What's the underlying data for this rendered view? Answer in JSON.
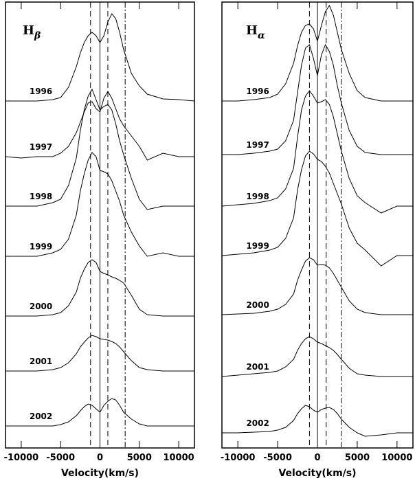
{
  "chart_data": [
    {
      "type": "line",
      "label": "H",
      "label_sub": "β",
      "xlabel": "Velocity(km/s)",
      "xlim": [
        -12000,
        12000
      ],
      "xticks": [
        -10000,
        -5000,
        0,
        5000,
        10000
      ],
      "ylim": [
        0,
        649
      ],
      "reference_lines": [
        {
          "value": -1200,
          "style": "dashed"
        },
        {
          "value": 0,
          "style": "solid"
        },
        {
          "value": 1000,
          "style": "dashed"
        },
        {
          "value": 3200,
          "style": "dashdot"
        }
      ],
      "x": [
        -12000,
        -10000,
        -8000,
        -6000,
        -5000,
        -4000,
        -3000,
        -2500,
        -2000,
        -1500,
        -1000,
        -500,
        0,
        500,
        1000,
        1500,
        2000,
        2500,
        3000,
        4000,
        5000,
        6000,
        8000,
        10000,
        12000
      ],
      "series": [
        {
          "name": "1996",
          "color": "#000000",
          "values": [
            505,
            505,
            505,
            507,
            510,
            525,
            555,
            575,
            590,
            600,
            605,
            600,
            590,
            600,
            620,
            632,
            625,
            605,
            580,
            545,
            527,
            515,
            508,
            507,
            505
          ]
        },
        {
          "name": "1997",
          "color": "#000000",
          "values": [
            424,
            422,
            424,
            424,
            429,
            439,
            459,
            474,
            489,
            502,
            504,
            494,
            489,
            509,
            519,
            509,
            494,
            479,
            469,
            454,
            439,
            419,
            429,
            424,
            424
          ]
        },
        {
          "name": "1998",
          "color": "#000000",
          "values": [
            352,
            352,
            352,
            357,
            362,
            382,
            422,
            462,
            492,
            512,
            522,
            507,
            492,
            497,
            500,
            492,
            472,
            447,
            427,
            392,
            362,
            347,
            352,
            352,
            352
          ]
        },
        {
          "name": "1999",
          "color": "#000000",
          "values": [
            279,
            279,
            279,
            284,
            289,
            304,
            339,
            374,
            399,
            419,
            430,
            424,
            404,
            402,
            399,
            389,
            374,
            359,
            339,
            314,
            294,
            279,
            284,
            279,
            279
          ]
        },
        {
          "name": "2000",
          "color": "#000000",
          "values": [
            192,
            192,
            192,
            194,
            197,
            207,
            227,
            247,
            260,
            270,
            274,
            270,
            257,
            254,
            252,
            249,
            247,
            244,
            240,
            222,
            202,
            194,
            192,
            192,
            192
          ]
        },
        {
          "name": "2001",
          "color": "#000000",
          "values": [
            112,
            112,
            112,
            114,
            117,
            124,
            137,
            147,
            154,
            160,
            164,
            162,
            159,
            158,
            157,
            155,
            152,
            147,
            140,
            127,
            117,
            114,
            112,
            112,
            112
          ]
        },
        {
          "name": "2002",
          "color": "#000000",
          "values": [
            32,
            32,
            32,
            32,
            34,
            38,
            47,
            54,
            60,
            64,
            62,
            57,
            52,
            62,
            68,
            72,
            70,
            62,
            52,
            42,
            35,
            32,
            32,
            32,
            32
          ]
        }
      ]
    },
    {
      "type": "line",
      "label": "H",
      "label_sub": "α",
      "xlabel": "Velocity(km/s)",
      "xlim": [
        -12000,
        12000
      ],
      "xticks": [
        -10000,
        -5000,
        0,
        5000,
        10000
      ],
      "ylim": [
        0,
        649
      ],
      "reference_lines": [
        {
          "value": -1000,
          "style": "dashed"
        },
        {
          "value": 0,
          "style": "solid"
        },
        {
          "value": 1100,
          "style": "dashed"
        },
        {
          "value": 3000,
          "style": "dashdot"
        }
      ],
      "x": [
        -12000,
        -10000,
        -8000,
        -6000,
        -5000,
        -4000,
        -3000,
        -2500,
        -2000,
        -1500,
        -1000,
        -500,
        0,
        500,
        1000,
        1500,
        2000,
        2500,
        3000,
        4000,
        5000,
        6000,
        8000,
        10000,
        12000
      ],
      "series": [
        {
          "name": "1996",
          "color": "#000000",
          "values": [
            505,
            505,
            507,
            510,
            515,
            530,
            560,
            585,
            605,
            615,
            617,
            610,
            592,
            615,
            635,
            644,
            630,
            605,
            580,
            545,
            520,
            510,
            505,
            505,
            505
          ]
        },
        {
          "name": "1997",
          "color": "#000000",
          "values": [
            427,
            427,
            429,
            432,
            435,
            447,
            477,
            517,
            557,
            582,
            587,
            567,
            542,
            572,
            587,
            577,
            557,
            527,
            502,
            462,
            439,
            430,
            427,
            427,
            427
          ]
        },
        {
          "name": "1998",
          "color": "#000000",
          "values": [
            352,
            354,
            356,
            360,
            364,
            377,
            407,
            452,
            492,
            512,
            520,
            512,
            502,
            504,
            507,
            500,
            482,
            457,
            432,
            392,
            367,
            357,
            342,
            352,
            352
          ]
        },
        {
          "name": "1999",
          "color": "#000000",
          "values": [
            280,
            282,
            284,
            288,
            292,
            305,
            335,
            375,
            405,
            425,
            432,
            428,
            420,
            417,
            410,
            400,
            385,
            370,
            355,
            320,
            298,
            288,
            265,
            280,
            280
          ]
        },
        {
          "name": "2000",
          "color": "#000000",
          "values": [
            194,
            195,
            196,
            199,
            202,
            209,
            224,
            244,
            259,
            272,
            277,
            274,
            266,
            267,
            266,
            262,
            254,
            244,
            234,
            214,
            202,
            197,
            194,
            194,
            194
          ]
        },
        {
          "name": "2001",
          "color": "#000000",
          "values": [
            104,
            106,
            108,
            110,
            112,
            118,
            129,
            142,
            152,
            159,
            162,
            159,
            154,
            152,
            149,
            146,
            142,
            136,
            129,
            116,
            108,
            106,
            104,
            104,
            104
          ]
        },
        {
          "name": "2002",
          "color": "#000000",
          "values": [
            22,
            22,
            23,
            24,
            26,
            30,
            40,
            50,
            57,
            62,
            60,
            55,
            52,
            56,
            58,
            59,
            56,
            50,
            42,
            30,
            22,
            17,
            19,
            22,
            22
          ]
        }
      ]
    }
  ]
}
